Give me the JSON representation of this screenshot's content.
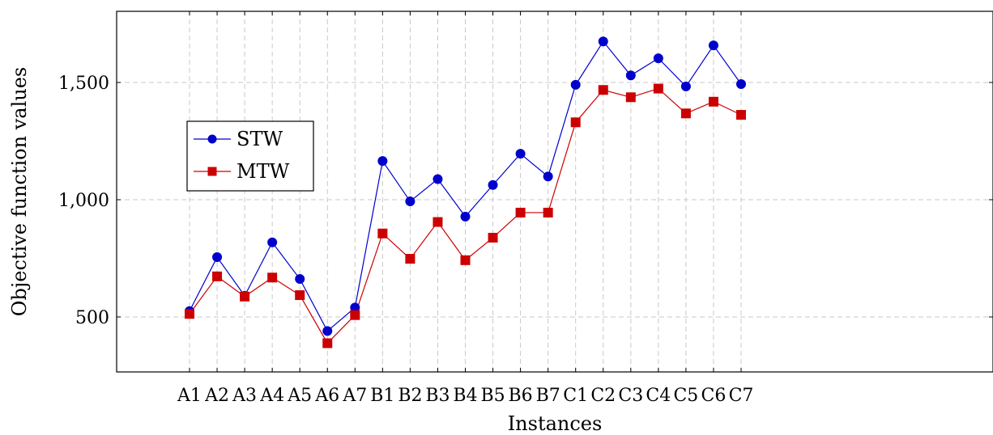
{
  "chart_data": {
    "type": "line",
    "categories": [
      "A1",
      "A2",
      "A3",
      "A4",
      "A5",
      "A6",
      "A7",
      "B1",
      "B2",
      "B3",
      "B4",
      "B5",
      "B6",
      "B7",
      "C1",
      "C2",
      "C3",
      "C4",
      "C5",
      "C6",
      "C7"
    ],
    "series": [
      {
        "name": "STW",
        "color": "#0000cc",
        "marker": "circle",
        "values": [
          525,
          755,
          590,
          818,
          662,
          440,
          540,
          1165,
          993,
          1088,
          928,
          1063,
          1196,
          1099,
          1490,
          1675,
          1530,
          1603,
          1483,
          1658,
          1493
        ]
      },
      {
        "name": "MTW",
        "color": "#cc0000",
        "marker": "square",
        "values": [
          513,
          673,
          587,
          668,
          593,
          388,
          508,
          856,
          748,
          905,
          742,
          838,
          945,
          945,
          1330,
          1468,
          1437,
          1474,
          1368,
          1418,
          1362
        ]
      }
    ],
    "xlabel": "Instances",
    "ylabel": "Objective function values",
    "yticks": [
      500,
      1000,
      1500
    ],
    "ytick_labels": [
      "500",
      "1,000",
      "1,500"
    ],
    "ylim": [
      270,
      1800
    ],
    "grid": true,
    "legend_position": "left, middle"
  }
}
